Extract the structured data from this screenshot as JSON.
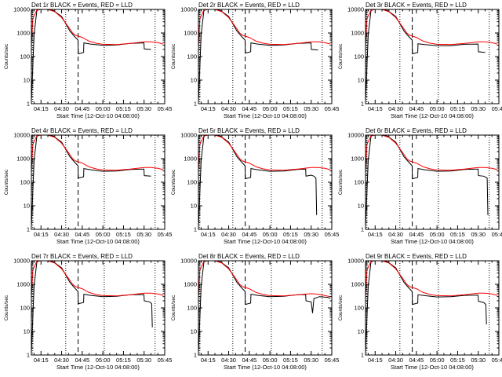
{
  "figure": {
    "xtick_labels": [
      "04:15",
      "04:30",
      "04:45",
      "05:00",
      "05:15",
      "05:30",
      "05:45"
    ],
    "xlabel": "Start Time (12-Oct-10 04:08:00)",
    "ylabel": "Counts/sec",
    "ytick_labels": [
      "1",
      "10",
      "100",
      "1000",
      "10000"
    ],
    "colors": {
      "events": "#000000",
      "lld": "#ff0000",
      "axes": "#000000",
      "background": "#ffffff"
    }
  },
  "chart_data": [
    {
      "type": "line",
      "title": "Det 1r BLACK = Events, RED = LLD",
      "xlim": [
        8,
        105
      ],
      "ylim": [
        1,
        10000
      ],
      "yscale": "log",
      "vlines_dotted": [
        9,
        33,
        61,
        98
      ],
      "vlines_dashed": [
        8,
        42
      ],
      "series": [
        {
          "name": "Events",
          "color": "#000000",
          "x": [
            8,
            10,
            12,
            14,
            20,
            24,
            30,
            36,
            40,
            41.9,
            42.1,
            46,
            46.2,
            51,
            60,
            70,
            80,
            89.9,
            90.1,
            95
          ],
          "y": [
            1.2,
            900,
            9000,
            10000,
            10000,
            9000,
            5000,
            1200,
            650,
            500,
            130,
            150,
            380,
            340,
            300,
            310,
            360,
            380,
            210,
            200
          ]
        },
        {
          "name": "LLD",
          "color": "#ff0000",
          "x": [
            8,
            9,
            12,
            15,
            20,
            25,
            30,
            35,
            38,
            40,
            45,
            50,
            55,
            60,
            70,
            80,
            90,
            95,
            100,
            104
          ],
          "y": [
            300,
            4000,
            9500,
            10000,
            10000,
            8000,
            4500,
            1800,
            1000,
            800,
            650,
            450,
            370,
            330,
            320,
            360,
            420,
            420,
            390,
            340
          ]
        }
      ]
    },
    {
      "type": "line",
      "title": "Det 2r BLACK = Events, RED = LLD",
      "xlim": [
        8,
        105
      ],
      "ylim": [
        1,
        10000
      ],
      "yscale": "log",
      "vlines_dotted": [
        9,
        33,
        61,
        98
      ],
      "vlines_dashed": [
        8,
        42
      ],
      "series": [
        {
          "name": "Events",
          "color": "#000000",
          "x": [
            8,
            10,
            12,
            14,
            20,
            24,
            30,
            36,
            40,
            41.9,
            42.1,
            46,
            46.2,
            51,
            60,
            70,
            80,
            89.9,
            90.1,
            95
          ],
          "y": [
            1.2,
            900,
            9000,
            10000,
            10000,
            9000,
            5000,
            1200,
            650,
            500,
            140,
            160,
            380,
            340,
            300,
            310,
            360,
            380,
            200,
            190
          ]
        },
        {
          "name": "LLD",
          "color": "#ff0000",
          "x": [
            8,
            9,
            12,
            15,
            20,
            25,
            30,
            35,
            38,
            40,
            45,
            50,
            55,
            60,
            70,
            80,
            90,
            95,
            100,
            104
          ],
          "y": [
            300,
            4000,
            9500,
            10000,
            10000,
            8000,
            4500,
            1800,
            1000,
            800,
            650,
            450,
            370,
            330,
            320,
            360,
            420,
            420,
            390,
            340
          ]
        }
      ]
    },
    {
      "type": "line",
      "title": "Det 3r BLACK = Events, RED = LLD",
      "xlim": [
        8,
        105
      ],
      "ylim": [
        1,
        10000
      ],
      "yscale": "log",
      "vlines_dotted": [
        9,
        33,
        61,
        98
      ],
      "vlines_dashed": [
        8,
        42
      ],
      "series": [
        {
          "name": "Events",
          "color": "#000000",
          "x": [
            8,
            10,
            12,
            14,
            20,
            24,
            30,
            36,
            40,
            41.9,
            42.1,
            46,
            46.2,
            51,
            60,
            70,
            80,
            89.9,
            90.1,
            95
          ],
          "y": [
            1.2,
            900,
            9000,
            10000,
            10000,
            9000,
            5000,
            1200,
            650,
            500,
            130,
            150,
            350,
            320,
            290,
            290,
            330,
            340,
            160,
            150
          ]
        },
        {
          "name": "LLD",
          "color": "#ff0000",
          "x": [
            8,
            9,
            12,
            15,
            20,
            25,
            30,
            35,
            38,
            40,
            45,
            50,
            55,
            60,
            70,
            80,
            90,
            95,
            100,
            104
          ],
          "y": [
            300,
            4000,
            9500,
            10000,
            10000,
            8000,
            4500,
            1800,
            1000,
            800,
            650,
            450,
            370,
            330,
            320,
            360,
            420,
            420,
            390,
            340
          ]
        }
      ]
    },
    {
      "type": "line",
      "title": "Det 4r BLACK = Events, RED = LLD",
      "xlim": [
        8,
        105
      ],
      "ylim": [
        1,
        10000
      ],
      "yscale": "log",
      "vlines_dotted": [
        9,
        33,
        61,
        98
      ],
      "vlines_dashed": [
        8,
        42
      ],
      "series": [
        {
          "name": "Events",
          "color": "#000000",
          "x": [
            8,
            10,
            12,
            14,
            20,
            24,
            30,
            36,
            40,
            41.9,
            42.1,
            46,
            46.2,
            51,
            60,
            70,
            80,
            89.9,
            90.1,
            95
          ],
          "y": [
            1.2,
            900,
            9000,
            10000,
            10000,
            9000,
            5000,
            1200,
            650,
            500,
            150,
            170,
            380,
            340,
            290,
            300,
            350,
            360,
            190,
            180
          ]
        },
        {
          "name": "LLD",
          "color": "#ff0000",
          "x": [
            8,
            9,
            12,
            15,
            20,
            25,
            30,
            35,
            38,
            40,
            45,
            50,
            55,
            60,
            70,
            80,
            90,
            95,
            100,
            104
          ],
          "y": [
            300,
            4000,
            9500,
            10000,
            10000,
            8000,
            4500,
            1800,
            1000,
            800,
            650,
            450,
            370,
            330,
            320,
            360,
            420,
            420,
            390,
            340
          ]
        }
      ]
    },
    {
      "type": "line",
      "title": "Det 5r BLACK = Events, RED = LLD",
      "xlim": [
        8,
        105
      ],
      "ylim": [
        1,
        10000
      ],
      "yscale": "log",
      "vlines_dotted": [
        9,
        33,
        61,
        98
      ],
      "vlines_dashed": [
        8,
        42
      ],
      "series": [
        {
          "name": "Events",
          "color": "#000000",
          "x": [
            8,
            10,
            12,
            14,
            20,
            24,
            30,
            36,
            40,
            41.9,
            42.1,
            46,
            46.2,
            51,
            60,
            70,
            80,
            86,
            86.2,
            90,
            92,
            93.5,
            94
          ],
          "y": [
            1.2,
            900,
            9000,
            10000,
            10000,
            9000,
            5000,
            1200,
            650,
            500,
            140,
            160,
            380,
            340,
            290,
            300,
            350,
            360,
            180,
            200,
            180,
            150,
            4
          ]
        },
        {
          "name": "LLD",
          "color": "#ff0000",
          "x": [
            8,
            9,
            12,
            15,
            20,
            25,
            30,
            35,
            38,
            40,
            45,
            50,
            55,
            60,
            70,
            80,
            90,
            95,
            100,
            104
          ],
          "y": [
            300,
            4000,
            9500,
            10000,
            10000,
            8000,
            4500,
            1800,
            1000,
            800,
            650,
            450,
            370,
            330,
            320,
            360,
            420,
            420,
            390,
            340
          ]
        }
      ]
    },
    {
      "type": "line",
      "title": "Det 6r BLACK = Events, RED = LLD",
      "xlim": [
        8,
        105
      ],
      "ylim": [
        1,
        10000
      ],
      "yscale": "log",
      "vlines_dotted": [
        9,
        33,
        61,
        98
      ],
      "vlines_dashed": [
        8,
        42
      ],
      "series": [
        {
          "name": "Events",
          "color": "#000000",
          "x": [
            8,
            10,
            12,
            14,
            20,
            24,
            30,
            36,
            40,
            41.9,
            42.1,
            46,
            46.2,
            51,
            60,
            70,
            80,
            89.9,
            90.1,
            94,
            96.5,
            97
          ],
          "y": [
            1.2,
            900,
            9000,
            10000,
            10000,
            9000,
            5000,
            1200,
            650,
            500,
            140,
            160,
            380,
            340,
            290,
            300,
            350,
            360,
            190,
            180,
            150,
            4
          ]
        },
        {
          "name": "LLD",
          "color": "#ff0000",
          "x": [
            8,
            9,
            12,
            15,
            20,
            25,
            30,
            35,
            38,
            40,
            45,
            50,
            55,
            60,
            70,
            80,
            90,
            95,
            100,
            104
          ],
          "y": [
            300,
            4000,
            9500,
            10000,
            10000,
            8000,
            4500,
            1800,
            1000,
            800,
            650,
            450,
            370,
            330,
            320,
            360,
            420,
            420,
            390,
            340
          ]
        }
      ]
    },
    {
      "type": "line",
      "title": "Det 7r BLACK = Events, RED = LLD",
      "xlim": [
        8,
        105
      ],
      "ylim": [
        1,
        10000
      ],
      "yscale": "log",
      "vlines_dotted": [
        9,
        33,
        61,
        98
      ],
      "vlines_dashed": [
        8,
        42
      ],
      "series": [
        {
          "name": "Events",
          "color": "#000000",
          "x": [
            8,
            10,
            12,
            14,
            20,
            24,
            30,
            36,
            40,
            41.9,
            42.1,
            46,
            46.2,
            51,
            60,
            70,
            80,
            89.9,
            90.1,
            94,
            95.5,
            96
          ],
          "y": [
            1.2,
            900,
            9000,
            10000,
            10000,
            9000,
            5000,
            1200,
            650,
            500,
            150,
            170,
            380,
            340,
            300,
            310,
            360,
            370,
            200,
            180,
            150,
            15
          ]
        },
        {
          "name": "LLD",
          "color": "#ff0000",
          "x": [
            8,
            9,
            12,
            15,
            20,
            25,
            30,
            35,
            38,
            40,
            45,
            50,
            55,
            60,
            70,
            80,
            90,
            95,
            100,
            104
          ],
          "y": [
            300,
            4000,
            9500,
            10000,
            10000,
            8000,
            4500,
            1800,
            1000,
            800,
            650,
            450,
            370,
            330,
            320,
            360,
            420,
            420,
            390,
            340
          ]
        }
      ]
    },
    {
      "type": "line",
      "title": "Det 8r BLACK = Events, RED = LLD",
      "xlim": [
        8,
        105
      ],
      "ylim": [
        1,
        10000
      ],
      "yscale": "log",
      "vlines_dotted": [
        9,
        33,
        61,
        98
      ],
      "vlines_dashed": [
        8,
        42
      ],
      "series": [
        {
          "name": "Events",
          "color": "#000000",
          "x": [
            8,
            10,
            12,
            14,
            20,
            24,
            30,
            36,
            40,
            41.9,
            42.1,
            46,
            46.2,
            51,
            60,
            70,
            80,
            86,
            86.2,
            90,
            91,
            92,
            96,
            102,
            104
          ],
          "y": [
            1.2,
            900,
            9000,
            10000,
            10000,
            9000,
            5000,
            1200,
            650,
            500,
            140,
            160,
            380,
            340,
            300,
            310,
            360,
            370,
            200,
            180,
            60,
            250,
            300,
            280,
            250
          ]
        },
        {
          "name": "LLD",
          "color": "#ff0000",
          "x": [
            8,
            9,
            12,
            15,
            20,
            25,
            30,
            35,
            38,
            40,
            45,
            50,
            55,
            60,
            70,
            80,
            90,
            95,
            100,
            104
          ],
          "y": [
            300,
            4000,
            9500,
            10000,
            10000,
            8000,
            4500,
            1800,
            1000,
            800,
            650,
            450,
            370,
            330,
            320,
            360,
            400,
            380,
            330,
            300
          ]
        }
      ]
    },
    {
      "type": "line",
      "title": "Det 9r BLACK = Events, RED = LLD",
      "xlim": [
        8,
        105
      ],
      "ylim": [
        1,
        10000
      ],
      "yscale": "log",
      "vlines_dotted": [
        9,
        33,
        61,
        98
      ],
      "vlines_dashed": [
        8,
        42
      ],
      "series": [
        {
          "name": "Events",
          "color": "#000000",
          "x": [
            8,
            10,
            12,
            14,
            20,
            24,
            30,
            36,
            40,
            41.9,
            42.1,
            46,
            46.2,
            51,
            60,
            70,
            80,
            89.9,
            90.1,
            94,
            95.5,
            96
          ],
          "y": [
            1.2,
            900,
            9000,
            10000,
            10000,
            9000,
            5000,
            1200,
            650,
            500,
            140,
            160,
            360,
            330,
            290,
            300,
            340,
            350,
            190,
            170,
            140,
            20
          ]
        },
        {
          "name": "LLD",
          "color": "#ff0000",
          "x": [
            8,
            9,
            12,
            15,
            20,
            25,
            30,
            35,
            38,
            40,
            45,
            50,
            55,
            60,
            70,
            80,
            90,
            95,
            100,
            104
          ],
          "y": [
            300,
            4000,
            9500,
            10000,
            10000,
            8000,
            4500,
            1800,
            1000,
            800,
            650,
            450,
            370,
            330,
            320,
            360,
            420,
            420,
            390,
            340
          ]
        }
      ]
    }
  ]
}
